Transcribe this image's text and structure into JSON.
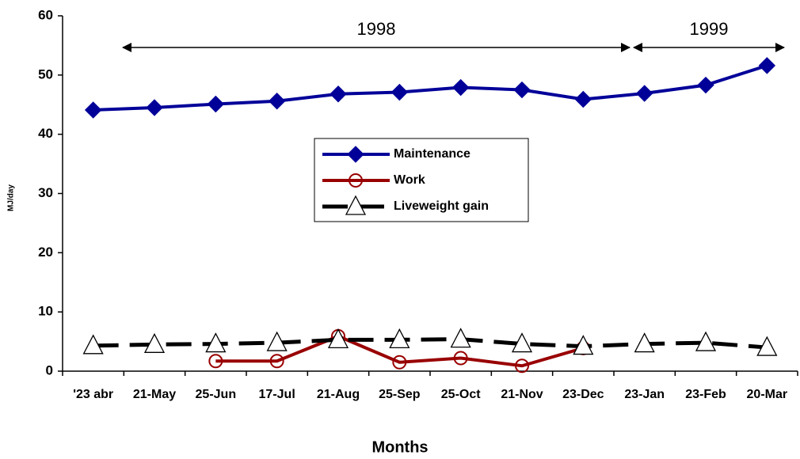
{
  "chart_data": {
    "type": "line",
    "x_label": "Months",
    "y_label": "MJ/day",
    "categories": [
      "'23 abr",
      "21-May",
      "25-Jun",
      "17-Jul",
      "21-Aug",
      "25-Sep",
      "25-Oct",
      "21-Nov",
      "23-Dec",
      "23-Jan",
      "23-Feb",
      "20-Mar"
    ],
    "series": [
      {
        "name": "Maintenance",
        "color": "#000099",
        "marker": "diamond",
        "dash": false,
        "values": [
          44.1,
          44.5,
          45.1,
          45.6,
          46.8,
          47.1,
          47.9,
          47.5,
          45.9,
          46.9,
          48.3,
          51.6
        ]
      },
      {
        "name": "Work",
        "color": "#990000",
        "marker": "circle",
        "dash": false,
        "values": [
          null,
          null,
          1.7,
          1.7,
          5.9,
          1.5,
          2.2,
          0.9,
          3.9,
          null,
          null,
          null
        ]
      },
      {
        "name": "Liveweight gain",
        "color": "#000000",
        "marker": "triangle",
        "dash": true,
        "values": [
          4.3,
          4.5,
          4.6,
          4.8,
          5.3,
          5.3,
          5.4,
          4.6,
          4.2,
          4.6,
          4.8,
          4.0
        ]
      }
    ],
    "annotations": [
      "1998",
      "1999"
    ],
    "ylim": [
      0,
      60
    ],
    "yticks": [
      0,
      10,
      20,
      30,
      40,
      50,
      60
    ],
    "grid": false,
    "legend": "center"
  }
}
